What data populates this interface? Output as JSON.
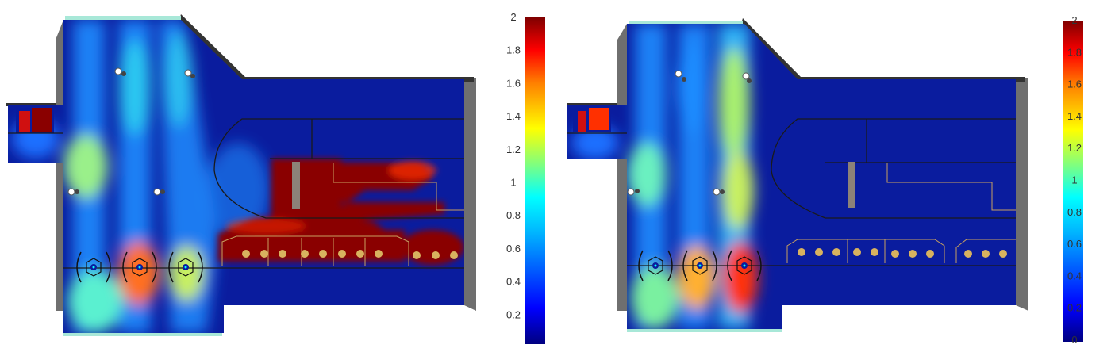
{
  "figure": {
    "panels": [
      {
        "id": "left",
        "colorbar_ticks": [
          "2",
          "1.8",
          "1.6",
          "1.4",
          "1.2",
          "1",
          "0.8",
          "0.6",
          "0.4",
          "0.2"
        ]
      },
      {
        "id": "right",
        "colorbar_ticks": [
          "2",
          "1.8",
          "1.6",
          "1.4",
          "1.2",
          "1",
          "0.8",
          "0.6",
          "0.4",
          "0.2",
          "0"
        ]
      }
    ],
    "colormap": [
      "#00007f",
      "#0000ff",
      "#007fff",
      "#00ffff",
      "#7fff7f",
      "#ffff00",
      "#ff7f00",
      "#ff0000",
      "#7f0000"
    ],
    "colors": {
      "field_background": "#0a1c9e",
      "wall": "#6f6f6f",
      "outline": "#1a1a1a",
      "tube": "#d8b25f",
      "baffle_line": "#c8a060",
      "duct_top": "#a8e8d8"
    }
  }
}
